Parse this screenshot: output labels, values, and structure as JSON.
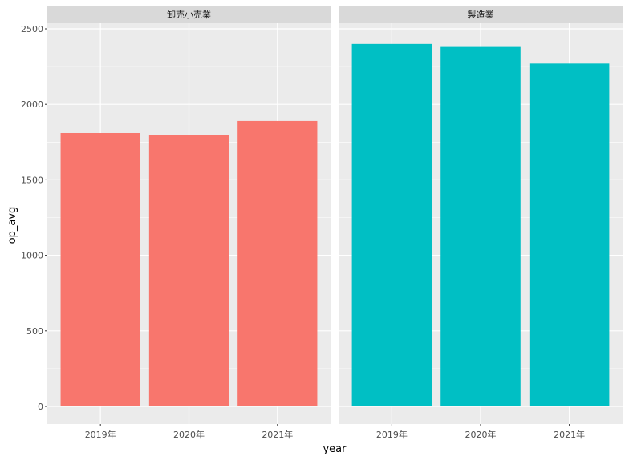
{
  "chart_data": {
    "type": "bar",
    "xlabel": "year",
    "ylabel": "op_avg",
    "ylim": [
      0,
      2500
    ],
    "y_ticks": [
      0,
      500,
      1000,
      1500,
      2000,
      2500
    ],
    "categories": [
      "2019年",
      "2020年",
      "2021年"
    ],
    "grid": true,
    "legend": "none",
    "facets": [
      {
        "name": "卸売小売業",
        "color": "#F8766D",
        "values": [
          1810,
          1795,
          1890
        ]
      },
      {
        "name": "製造業",
        "color": "#00BFC4",
        "values": [
          2400,
          2380,
          2270
        ]
      }
    ]
  }
}
